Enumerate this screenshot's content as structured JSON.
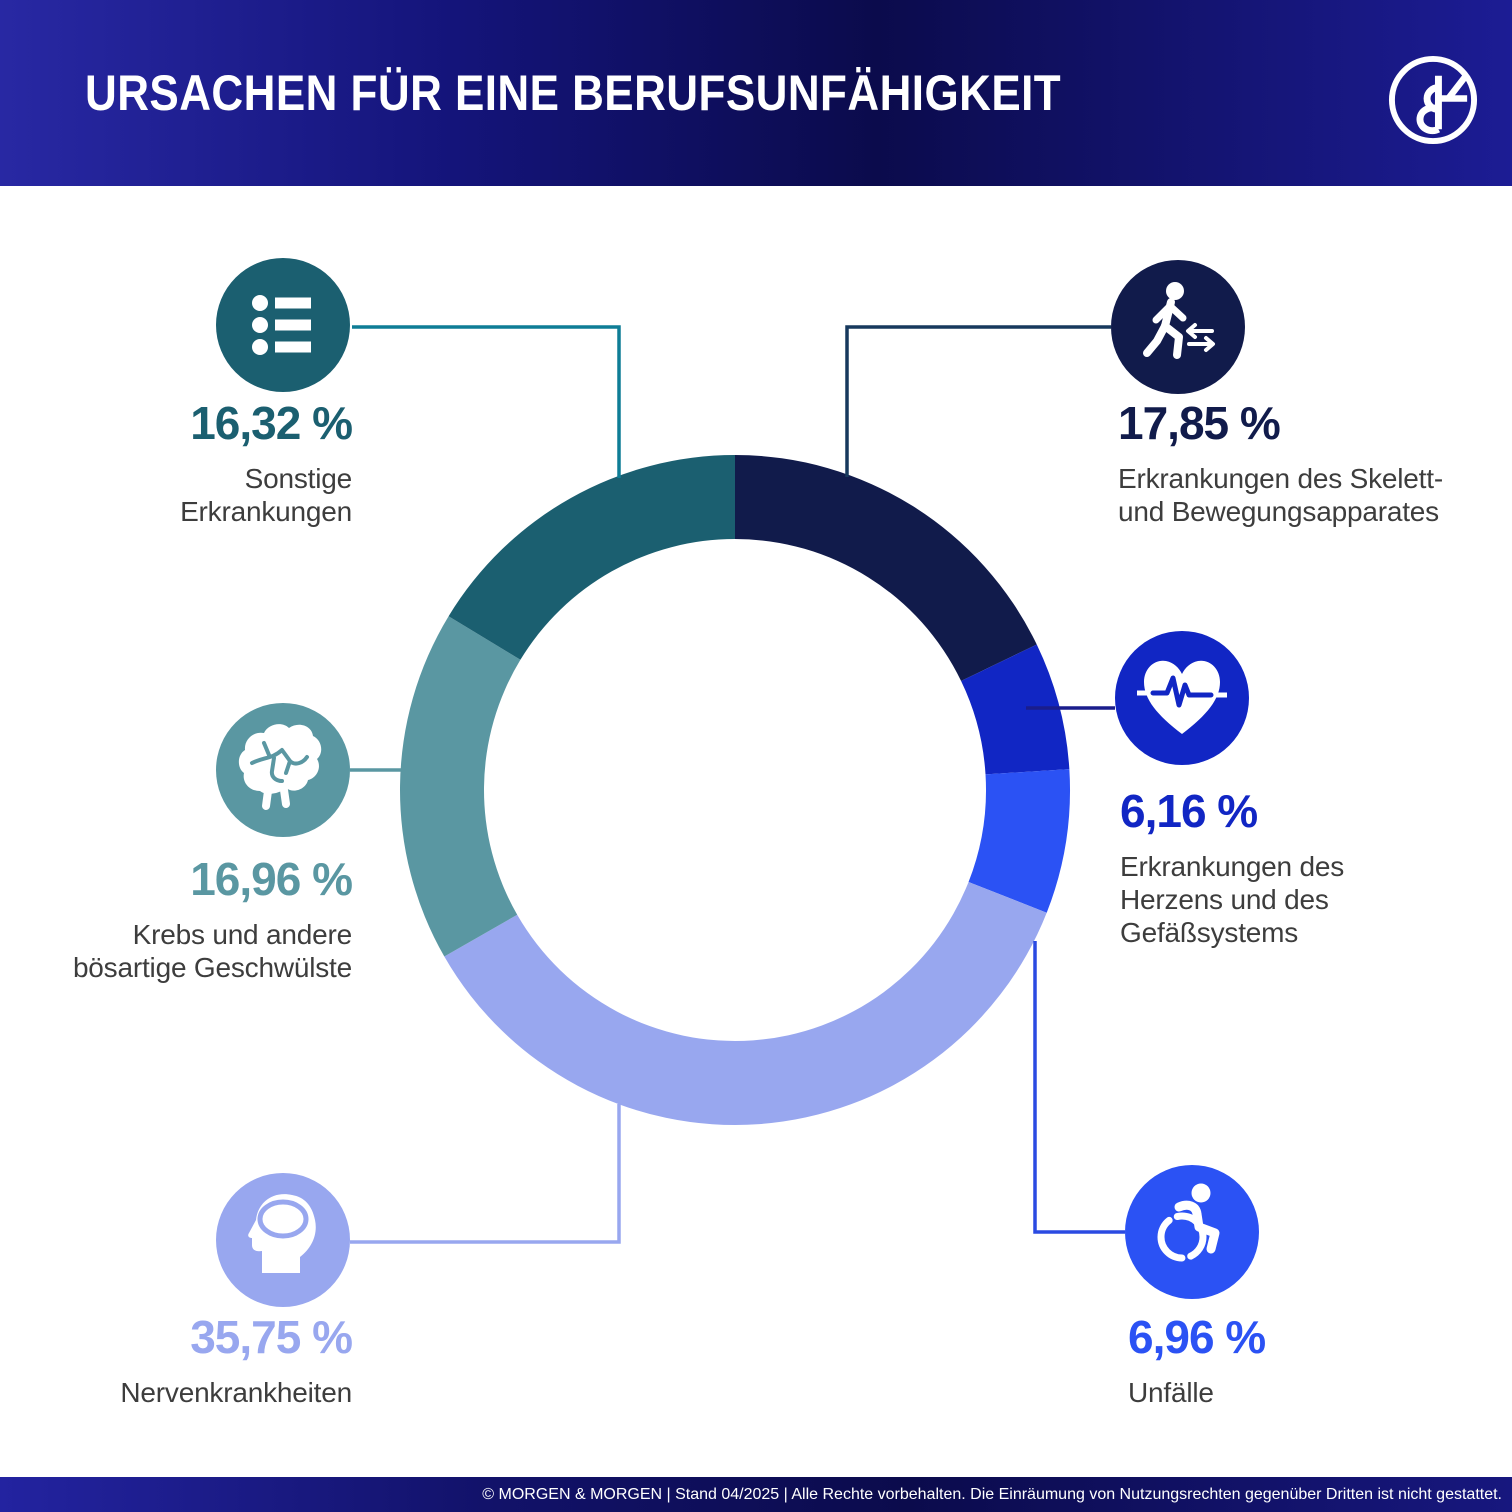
{
  "header": {
    "title": "URSACHEN FÜR EINE BERUFSUNFÄHIGKEIT",
    "logo_alt": "MORGEN & MORGEN"
  },
  "chart_data": {
    "type": "pie",
    "variant": "donut",
    "title": "URSACHEN FÜR EINE BERUFSUNFÄHIGKEIT",
    "unit": "%",
    "start_angle_deg": 0,
    "direction": "clockwise",
    "center": [
      735,
      790
    ],
    "outer_radius": 335,
    "inner_radius": 251,
    "segments": [
      {
        "name": "Erkrankungen des Skelett- und Bewegungsapparates",
        "value": 17.85,
        "percent_label": "17,85 %",
        "label_display": "Erkrankungen des Skelett-\nund Bewegungsapparates",
        "color": "#111b4b",
        "connector_color": "#17395d",
        "icon": "walking-person-icon",
        "side": "right"
      },
      {
        "name": "Erkrankungen des Herzens und des Gefäßsystems",
        "value": 6.16,
        "percent_label": "6,16 %",
        "label_display": "Erkrankungen des\nHerzens und des\nGefäßsystems",
        "color": "#1126c4",
        "connector_color": "#1a1d8c",
        "icon": "heart-pulse-icon",
        "side": "right"
      },
      {
        "name": "Unfälle",
        "value": 6.96,
        "percent_label": "6,96 %",
        "label_display": "Unfälle",
        "color": "#2b52f4",
        "connector_color": "#2a4ae2",
        "icon": "wheelchair-icon",
        "side": "right"
      },
      {
        "name": "Nervenkrankheiten",
        "value": 35.75,
        "percent_label": "35,75 %",
        "label_display": "Nervenkrankheiten",
        "color": "#98a7ef",
        "connector_color": "#98a7ef",
        "icon": "head-brain-icon",
        "side": "left"
      },
      {
        "name": "Krebs und andere bösartige Geschwülste",
        "value": 16.96,
        "percent_label": "16,96 %",
        "label_display": "Krebs und andere\nbösartige Geschwülste",
        "color": "#5a97a2",
        "connector_color": "#5a97a2",
        "icon": "brain-icon",
        "side": "left"
      },
      {
        "name": "Sonstige Erkrankungen",
        "value": 16.32,
        "percent_label": "16,32 %",
        "label_display": "Sonstige\nErkrankungen",
        "color": "#1b5f70",
        "connector_color": "#0e7d96",
        "icon": "list-icon",
        "side": "left"
      }
    ]
  },
  "footer": {
    "text": "© MORGEN & MORGEN | Stand 04/2025 | Alle Rechte vorbehalten. Die Einräumung von Nutzungsrechten gegenüber Dritten ist nicht gestattet."
  },
  "colors": {
    "header_gradient": [
      "#2828a3",
      "#0b0b4c",
      "#1c1c94"
    ],
    "label_text": "#3d3d3d",
    "background": "#ffffff"
  }
}
